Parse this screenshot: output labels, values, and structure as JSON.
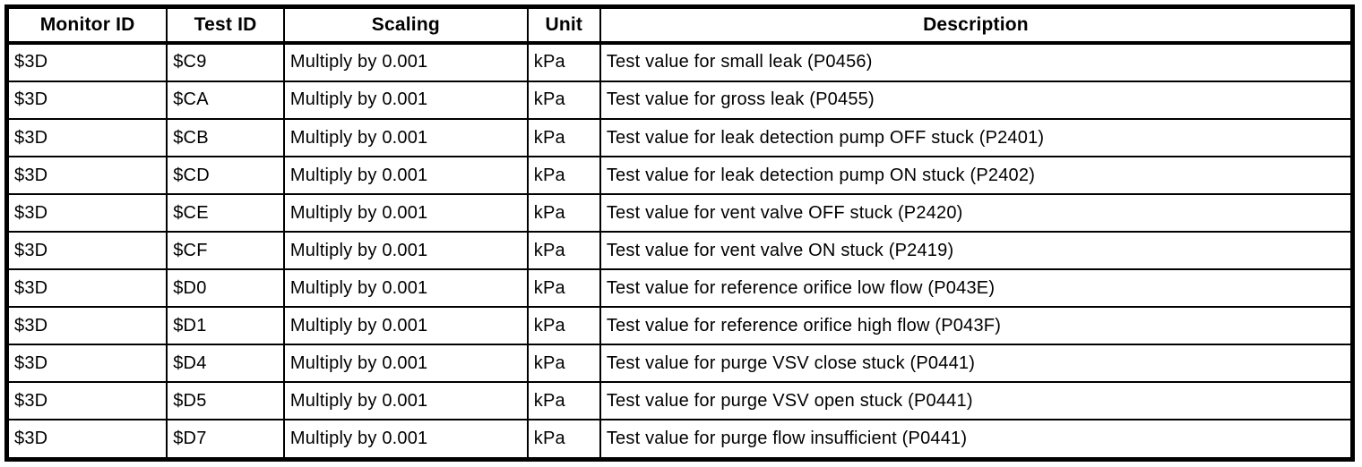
{
  "table": {
    "columns": [
      "Monitor ID",
      "Test ID",
      "Scaling",
      "Unit",
      "Description"
    ],
    "rows": [
      [
        "$3D",
        "$C9",
        "Multiply by 0.001",
        "kPa",
        "Test value for small leak (P0456)"
      ],
      [
        "$3D",
        "$CA",
        "Multiply by 0.001",
        "kPa",
        "Test value for gross leak (P0455)"
      ],
      [
        "$3D",
        "$CB",
        "Multiply by 0.001",
        "kPa",
        "Test value for leak detection pump OFF stuck (P2401)"
      ],
      [
        "$3D",
        "$CD",
        "Multiply by 0.001",
        "kPa",
        "Test value for leak detection pump ON stuck (P2402)"
      ],
      [
        "$3D",
        "$CE",
        "Multiply by 0.001",
        "kPa",
        "Test value for vent valve OFF stuck (P2420)"
      ],
      [
        "$3D",
        "$CF",
        "Multiply by 0.001",
        "kPa",
        "Test value for vent valve ON stuck (P2419)"
      ],
      [
        "$3D",
        "$D0",
        "Multiply by 0.001",
        "kPa",
        "Test value for reference orifice low flow (P043E)"
      ],
      [
        "$3D",
        "$D1",
        "Multiply by 0.001",
        "kPa",
        "Test value for reference orifice high flow (P043F)"
      ],
      [
        "$3D",
        "$D4",
        "Multiply by 0.001",
        "kPa",
        "Test value for purge VSV close stuck (P0441)"
      ],
      [
        "$3D",
        "$D5",
        "Multiply by 0.001",
        "kPa",
        "Test value for purge VSV open stuck (P0441)"
      ],
      [
        "$3D",
        "$D7",
        "Multiply by 0.001",
        "kPa",
        "Test value for purge flow insufficient (P0441)"
      ]
    ],
    "colors": {
      "border": "#000000",
      "background": "#ffffff",
      "text": "#000000"
    }
  }
}
